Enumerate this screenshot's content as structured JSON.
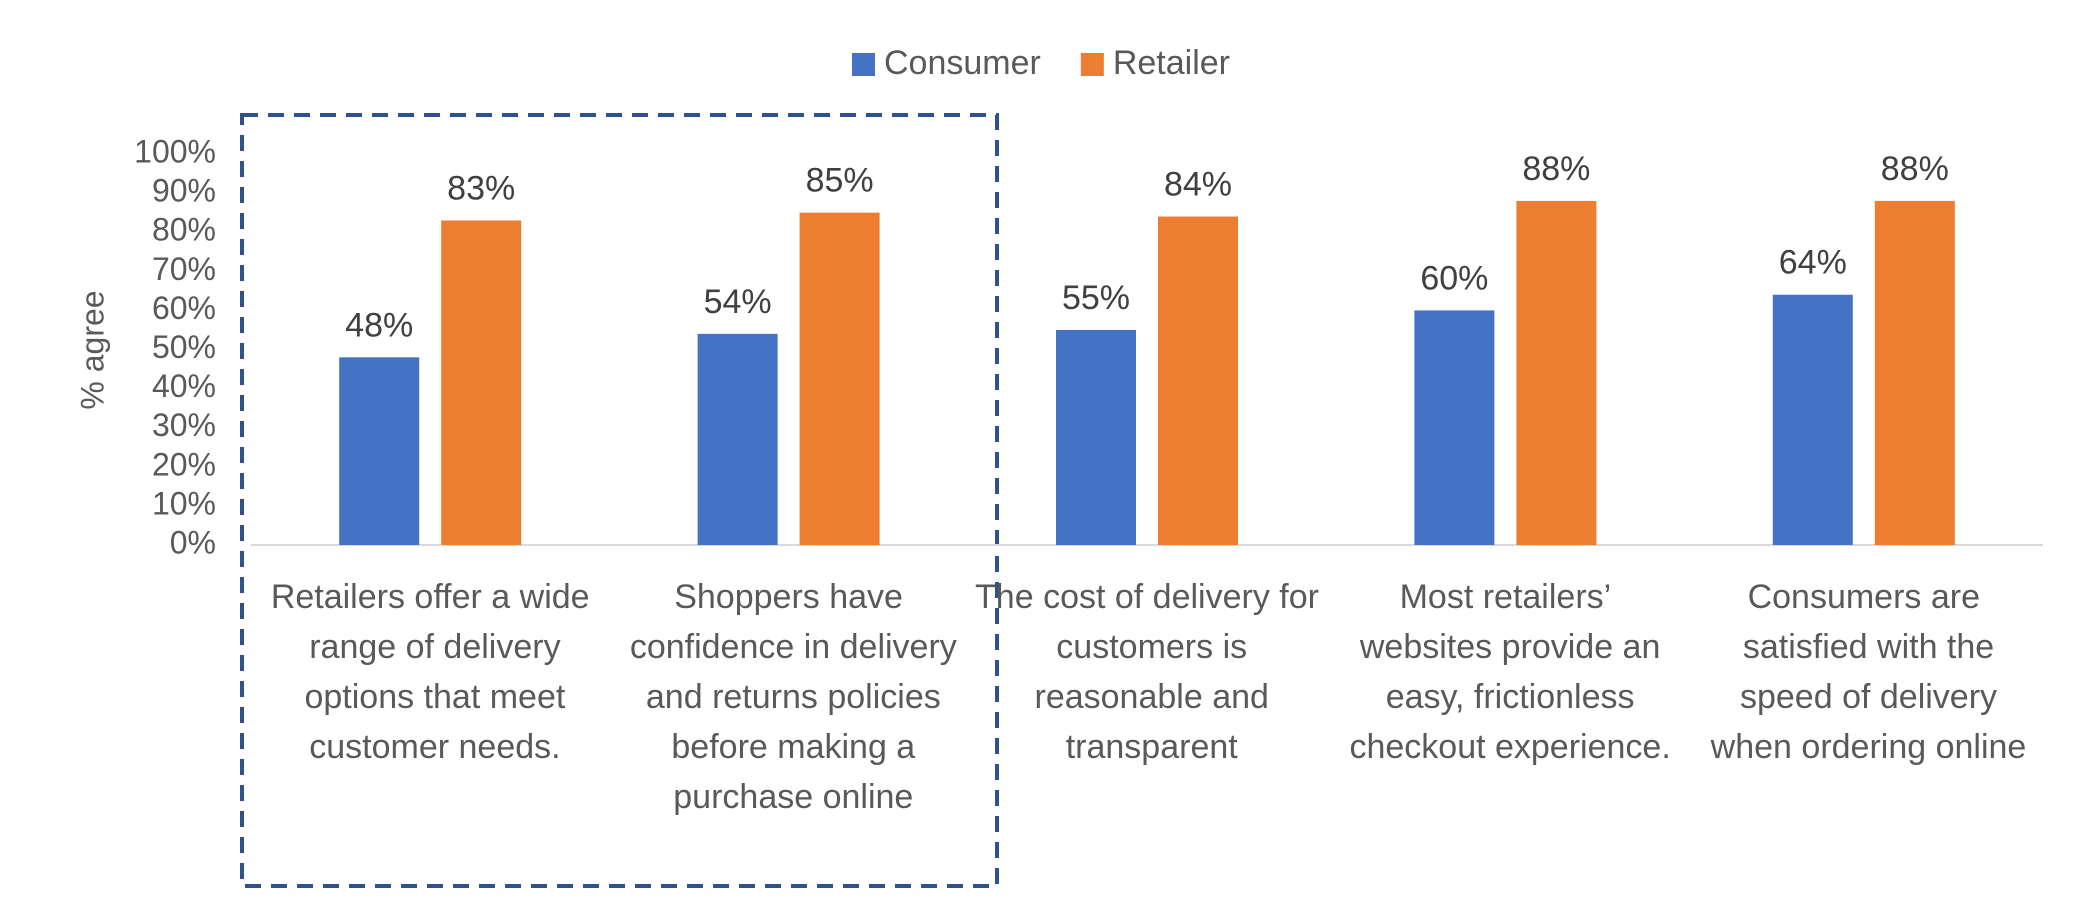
{
  "chart_data": {
    "type": "bar",
    "y_label": "% agree",
    "categories": [
      "Retailers offer a wide range of delivery options that meet customer needs.",
      "Shoppers have confidence in delivery and returns policies before making a purchase online",
      "The cost of delivery for customers is reasonable and transparent",
      "Most retailers’ websites provide an easy, frictionless checkout experience.",
      "Consumers are satisfied with the speed of delivery when ordering online"
    ],
    "series": [
      {
        "name": "Consumer",
        "color": "#4472c4",
        "values": [
          48,
          54,
          55,
          60,
          64
        ],
        "value_labels": [
          "48%",
          "54%",
          "55%",
          "60%",
          "64%"
        ]
      },
      {
        "name": "Retailer",
        "color": "#ed7d31",
        "values": [
          83,
          85,
          84,
          88,
          88
        ],
        "value_labels": [
          "83%",
          "85%",
          "84%",
          "88%",
          "88%"
        ]
      }
    ],
    "ylim": [
      0,
      100
    ],
    "yticks": [
      {
        "value": 0,
        "label": "0%"
      },
      {
        "value": 10,
        "label": "10%"
      },
      {
        "value": 20,
        "label": "20%"
      },
      {
        "value": 30,
        "label": "30%"
      },
      {
        "value": 40,
        "label": "40%"
      },
      {
        "value": 50,
        "label": "50%"
      },
      {
        "value": 60,
        "label": "60%"
      },
      {
        "value": 70,
        "label": "70%"
      },
      {
        "value": 80,
        "label": "80%"
      },
      {
        "value": 90,
        "label": "90%"
      },
      {
        "value": 100,
        "label": "100%"
      }
    ],
    "grid": false,
    "legend": "top"
  }
}
